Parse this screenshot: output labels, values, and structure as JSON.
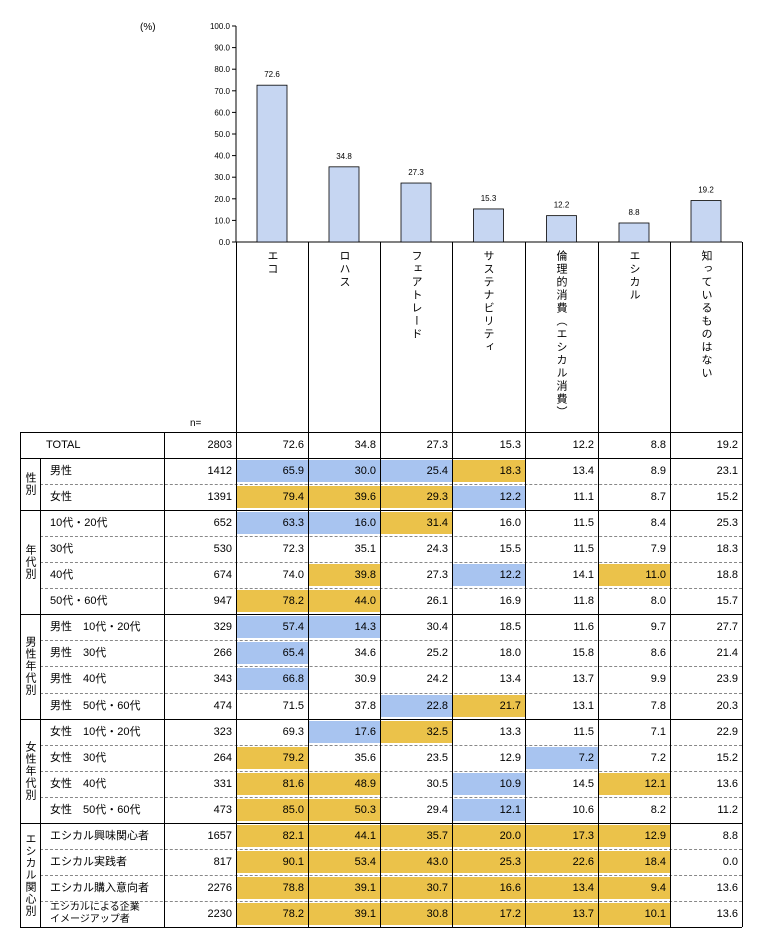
{
  "chart_data": {
    "type": "bar",
    "ylabel": "(%)",
    "ylim": [
      0,
      100
    ],
    "yticks": [
      "100.0",
      "90.0",
      "80.0",
      "70.0",
      "60.0",
      "50.0",
      "40.0",
      "30.0",
      "20.0",
      "10.0",
      "0.0"
    ],
    "categories": [
      "エコ",
      "ロハス",
      "フェアトレード",
      "サステナビリティ",
      "倫理的消費（エシカル消費）",
      "エシカル",
      "知っているものはない"
    ],
    "values": [
      72.6,
      34.8,
      27.3,
      15.3,
      12.2,
      8.8,
      19.2
    ],
    "value_labels": [
      "72.6",
      "34.8",
      "27.3",
      "15.3",
      "12.2",
      "8.8",
      "19.2"
    ],
    "bar_color": "#c6d6f2",
    "grid": false
  },
  "table": {
    "n_label": "n=",
    "colors": {
      "blue": "#a8c4f0",
      "yellow": "#ebc24a"
    },
    "groups": [
      {
        "label": "",
        "rows": [
          {
            "label": "TOTAL",
            "n": "2803",
            "values": [
              "72.6",
              "34.8",
              "27.3",
              "15.3",
              "12.2",
              "8.8",
              "19.2"
            ],
            "hl": [
              "",
              "",
              "",
              "",
              "",
              "",
              ""
            ]
          }
        ]
      },
      {
        "label": "性別",
        "rows": [
          {
            "label": "男性",
            "n": "1412",
            "values": [
              "65.9",
              "30.0",
              "25.4",
              "18.3",
              "13.4",
              "8.9",
              "23.1"
            ],
            "hl": [
              "b",
              "b",
              "b",
              "y",
              "",
              "",
              ""
            ]
          },
          {
            "label": "女性",
            "n": "1391",
            "values": [
              "79.4",
              "39.6",
              "29.3",
              "12.2",
              "11.1",
              "8.7",
              "15.2"
            ],
            "hl": [
              "y",
              "y",
              "y",
              "b",
              "",
              "",
              ""
            ]
          }
        ]
      },
      {
        "label": "年代別",
        "rows": [
          {
            "label": "10代・20代",
            "n": "652",
            "values": [
              "63.3",
              "16.0",
              "31.4",
              "16.0",
              "11.5",
              "8.4",
              "25.3"
            ],
            "hl": [
              "b",
              "b",
              "y",
              "",
              "",
              "",
              ""
            ]
          },
          {
            "label": "30代",
            "n": "530",
            "values": [
              "72.3",
              "35.1",
              "24.3",
              "15.5",
              "11.5",
              "7.9",
              "18.3"
            ],
            "hl": [
              "",
              "",
              "",
              "",
              "",
              "",
              ""
            ]
          },
          {
            "label": "40代",
            "n": "674",
            "values": [
              "74.0",
              "39.8",
              "27.3",
              "12.2",
              "14.1",
              "11.0",
              "18.8"
            ],
            "hl": [
              "",
              "y",
              "",
              "b",
              "",
              "y",
              ""
            ]
          },
          {
            "label": "50代・60代",
            "n": "947",
            "values": [
              "78.2",
              "44.0",
              "26.1",
              "16.9",
              "11.8",
              "8.0",
              "15.7"
            ],
            "hl": [
              "y",
              "y",
              "",
              "",
              "",
              "",
              ""
            ]
          }
        ]
      },
      {
        "label": "男性年代別",
        "rows": [
          {
            "label": "男性　10代・20代",
            "n": "329",
            "values": [
              "57.4",
              "14.3",
              "30.4",
              "18.5",
              "11.6",
              "9.7",
              "27.7"
            ],
            "hl": [
              "b",
              "b",
              "",
              "",
              "",
              "",
              ""
            ]
          },
          {
            "label": "男性　30代",
            "n": "266",
            "values": [
              "65.4",
              "34.6",
              "25.2",
              "18.0",
              "15.8",
              "8.6",
              "21.4"
            ],
            "hl": [
              "b",
              "",
              "",
              "",
              "",
              "",
              ""
            ]
          },
          {
            "label": "男性　40代",
            "n": "343",
            "values": [
              "66.8",
              "30.9",
              "24.2",
              "13.4",
              "13.7",
              "9.9",
              "23.9"
            ],
            "hl": [
              "b",
              "",
              "",
              "",
              "",
              "",
              ""
            ]
          },
          {
            "label": "男性　50代・60代",
            "n": "474",
            "values": [
              "71.5",
              "37.8",
              "22.8",
              "21.7",
              "13.1",
              "7.8",
              "20.3"
            ],
            "hl": [
              "",
              "",
              "b",
              "y",
              "",
              "",
              ""
            ]
          }
        ]
      },
      {
        "label": "女性年代別",
        "rows": [
          {
            "label": "女性　10代・20代",
            "n": "323",
            "values": [
              "69.3",
              "17.6",
              "32.5",
              "13.3",
              "11.5",
              "7.1",
              "22.9"
            ],
            "hl": [
              "",
              "b",
              "y",
              "",
              "",
              "",
              ""
            ]
          },
          {
            "label": "女性　30代",
            "n": "264",
            "values": [
              "79.2",
              "35.6",
              "23.5",
              "12.9",
              "7.2",
              "7.2",
              "15.2"
            ],
            "hl": [
              "y",
              "",
              "",
              "",
              "b",
              "",
              ""
            ]
          },
          {
            "label": "女性　40代",
            "n": "331",
            "values": [
              "81.6",
              "48.9",
              "30.5",
              "10.9",
              "14.5",
              "12.1",
              "13.6"
            ],
            "hl": [
              "y",
              "y",
              "",
              "b",
              "",
              "y",
              ""
            ]
          },
          {
            "label": "女性　50代・60代",
            "n": "473",
            "values": [
              "85.0",
              "50.3",
              "29.4",
              "12.1",
              "10.6",
              "8.2",
              "11.2"
            ],
            "hl": [
              "y",
              "y",
              "",
              "b",
              "",
              "",
              ""
            ]
          }
        ]
      },
      {
        "label": "エシカル関心別",
        "rows": [
          {
            "label": "エシカル興味関心者",
            "n": "1657",
            "values": [
              "82.1",
              "44.1",
              "35.7",
              "20.0",
              "17.3",
              "12.9",
              "8.8"
            ],
            "hl": [
              "y",
              "y",
              "y",
              "y",
              "y",
              "y",
              ""
            ]
          },
          {
            "label": "エシカル実践者",
            "n": "817",
            "values": [
              "90.1",
              "53.4",
              "43.0",
              "25.3",
              "22.6",
              "18.4",
              "0.0"
            ],
            "hl": [
              "y",
              "y",
              "y",
              "y",
              "y",
              "y",
              ""
            ]
          },
          {
            "label": "エシカル購入意向者",
            "n": "2276",
            "values": [
              "78.8",
              "39.1",
              "30.7",
              "16.6",
              "13.4",
              "9.4",
              "13.6"
            ],
            "hl": [
              "y",
              "y",
              "y",
              "y",
              "y",
              "y",
              ""
            ]
          },
          {
            "label": "エシカルによる企業イメージアップ者",
            "label_lines": [
              "エシカルによる企業",
              "イメージアップ者"
            ],
            "n": "2230",
            "values": [
              "78.2",
              "39.1",
              "30.8",
              "17.2",
              "13.7",
              "10.1",
              "13.6"
            ],
            "hl": [
              "y",
              "y",
              "y",
              "y",
              "y",
              "y",
              ""
            ]
          }
        ]
      }
    ]
  }
}
